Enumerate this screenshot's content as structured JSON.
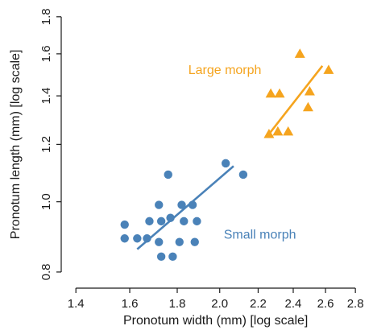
{
  "chart_data": {
    "type": "scatter",
    "title": "",
    "xlabel": "Pronotum width (mm) [log scale]",
    "ylabel": "Pronotum length (mm) [log scale]",
    "xscale": "log",
    "yscale": "log",
    "xlim": [
      1.35,
      2.85
    ],
    "ylim": [
      0.76,
      1.86
    ],
    "xticks": [
      1.4,
      1.6,
      1.8,
      2.0,
      2.2,
      2.4,
      2.6,
      2.8
    ],
    "xtick_labels": [
      "1.4",
      "1.6",
      "1.8",
      "2.0",
      "2.2",
      "2.4",
      "2.6",
      "2.8"
    ],
    "yticks": [
      0.8,
      1.0,
      1.2,
      1.4,
      1.6,
      1.8
    ],
    "ytick_labels": [
      "0.8",
      "1.0",
      "1.2",
      "1.4",
      "1.6",
      "1.8"
    ],
    "grid": false,
    "series": [
      {
        "name": "Small morph",
        "marker": "circle",
        "color": "#4a82b8",
        "points": [
          [
            1.58,
            0.93
          ],
          [
            1.58,
            0.89
          ],
          [
            1.63,
            0.89
          ],
          [
            1.67,
            0.89
          ],
          [
            1.68,
            0.94
          ],
          [
            1.72,
            0.88
          ],
          [
            1.73,
            0.94
          ],
          [
            1.72,
            0.99
          ],
          [
            1.73,
            0.84
          ],
          [
            1.76,
            1.09
          ],
          [
            1.77,
            0.95
          ],
          [
            1.78,
            0.84
          ],
          [
            1.81,
            0.88
          ],
          [
            1.82,
            0.99
          ],
          [
            1.83,
            0.94
          ],
          [
            1.87,
            0.99
          ],
          [
            1.88,
            0.88
          ],
          [
            1.89,
            0.94
          ],
          [
            2.03,
            1.13
          ],
          [
            2.12,
            1.09
          ]
        ],
        "fit": [
          [
            1.63,
            0.86
          ],
          [
            2.07,
            1.12
          ]
        ]
      },
      {
        "name": "Large morph",
        "marker": "triangle",
        "color": "#f5a41e",
        "points": [
          [
            2.26,
            1.24
          ],
          [
            2.27,
            1.41
          ],
          [
            2.31,
            1.25
          ],
          [
            2.32,
            1.41
          ],
          [
            2.37,
            1.25
          ],
          [
            2.44,
            1.6
          ],
          [
            2.49,
            1.35
          ],
          [
            2.5,
            1.42
          ],
          [
            2.62,
            1.52
          ]
        ],
        "fit": [
          [
            2.26,
            1.24
          ],
          [
            2.58,
            1.54
          ]
        ]
      }
    ],
    "annotations": [
      {
        "text": "Large morph",
        "x": 1.85,
        "y": 1.5,
        "color": "#f5a41e"
      },
      {
        "text": "Small morph",
        "x": 2.02,
        "y": 0.89,
        "color": "#4a82b8"
      }
    ]
  }
}
